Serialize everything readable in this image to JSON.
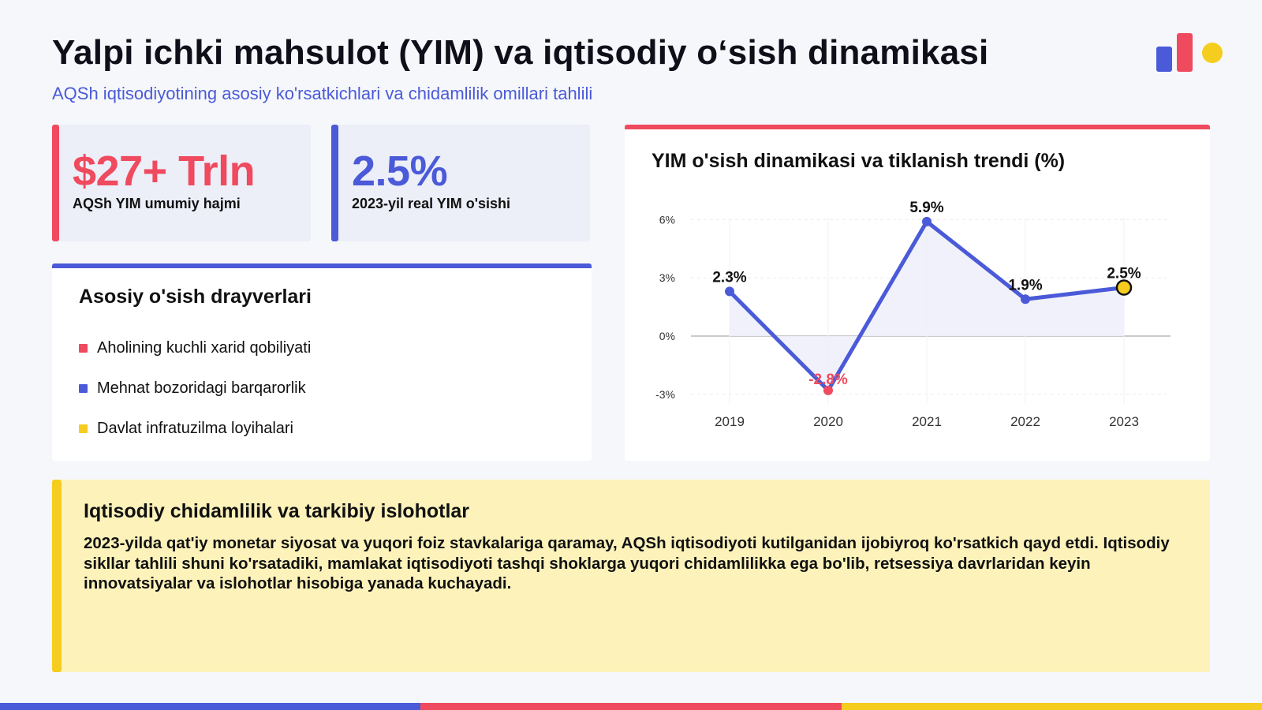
{
  "header": {
    "title": "Yalpi ichki mahsulot (YIM) va iqtisodiy o‘sish dinamikasi",
    "subtitle": "AQSh iqtisodiyotining asosiy ko'rsatkichlari va chidamlilik omillari tahlili"
  },
  "stats": [
    {
      "value": "$27+ Trln",
      "label": "AQSh YIM umumiy hajmi"
    },
    {
      "value": "2.5%",
      "label": "2023-yil real YIM o'sishi"
    }
  ],
  "drivers": {
    "title": "Asosiy o'sish drayverlari",
    "items": [
      {
        "label": "Aholining kuchli xarid qobiliyati",
        "color": "#ef4a5e"
      },
      {
        "label": "Mehnat bozoridagi barqarorlik",
        "color": "#4a5ad8"
      },
      {
        "label": "Davlat infratuzilma loyihalari",
        "color": "#f5cd1e"
      }
    ]
  },
  "chart_data": {
    "type": "line",
    "title": "YIM o'sish dinamikasi va tiklanish trendi (%)",
    "categories": [
      "2019",
      "2020",
      "2021",
      "2022",
      "2023"
    ],
    "series": [
      {
        "values": [
          2.3,
          -2.8,
          5.9,
          1.9,
          2.5
        ],
        "labels": [
          "2.3%",
          "-2.8%",
          "5.9%",
          "1.9%",
          "2.5%"
        ]
      }
    ],
    "y_ticks": [
      6,
      3,
      0,
      -3
    ],
    "y_tick_labels": [
      "6%",
      "3%",
      "0%",
      "-3%"
    ],
    "ylim": [
      -3.5,
      6.5
    ],
    "grid": true,
    "highlight_last_point": true,
    "colors": {
      "line": "#4a5ad8",
      "negative": "#ef4a5e",
      "highlight": "#f5cd1e",
      "area": "#eef0fa"
    }
  },
  "note": {
    "title": "Iqtisodiy chidamlilik va tarkibiy islohotlar",
    "text": "2023-yilda qat'iy monetar siyosat va yuqori foiz stavkalariga qaramay, AQSh iqtisodiyoti kutilganidan ijobiyroq ko'rsatkich qayd etdi. Iqtisodiy sikllar tahlili shuni ko'rsatadiki, mamlakat iqtisodiyoti tashqi shoklarga yuqori chidamlilikka ega bo'lib, retsessiya davrlaridan keyin innovatsiyalar va islohotlar hisobiga yanada kuchayadi."
  },
  "footer_colors": [
    "#4a5ad8",
    "#ef4a5e",
    "#f5cd1e"
  ]
}
